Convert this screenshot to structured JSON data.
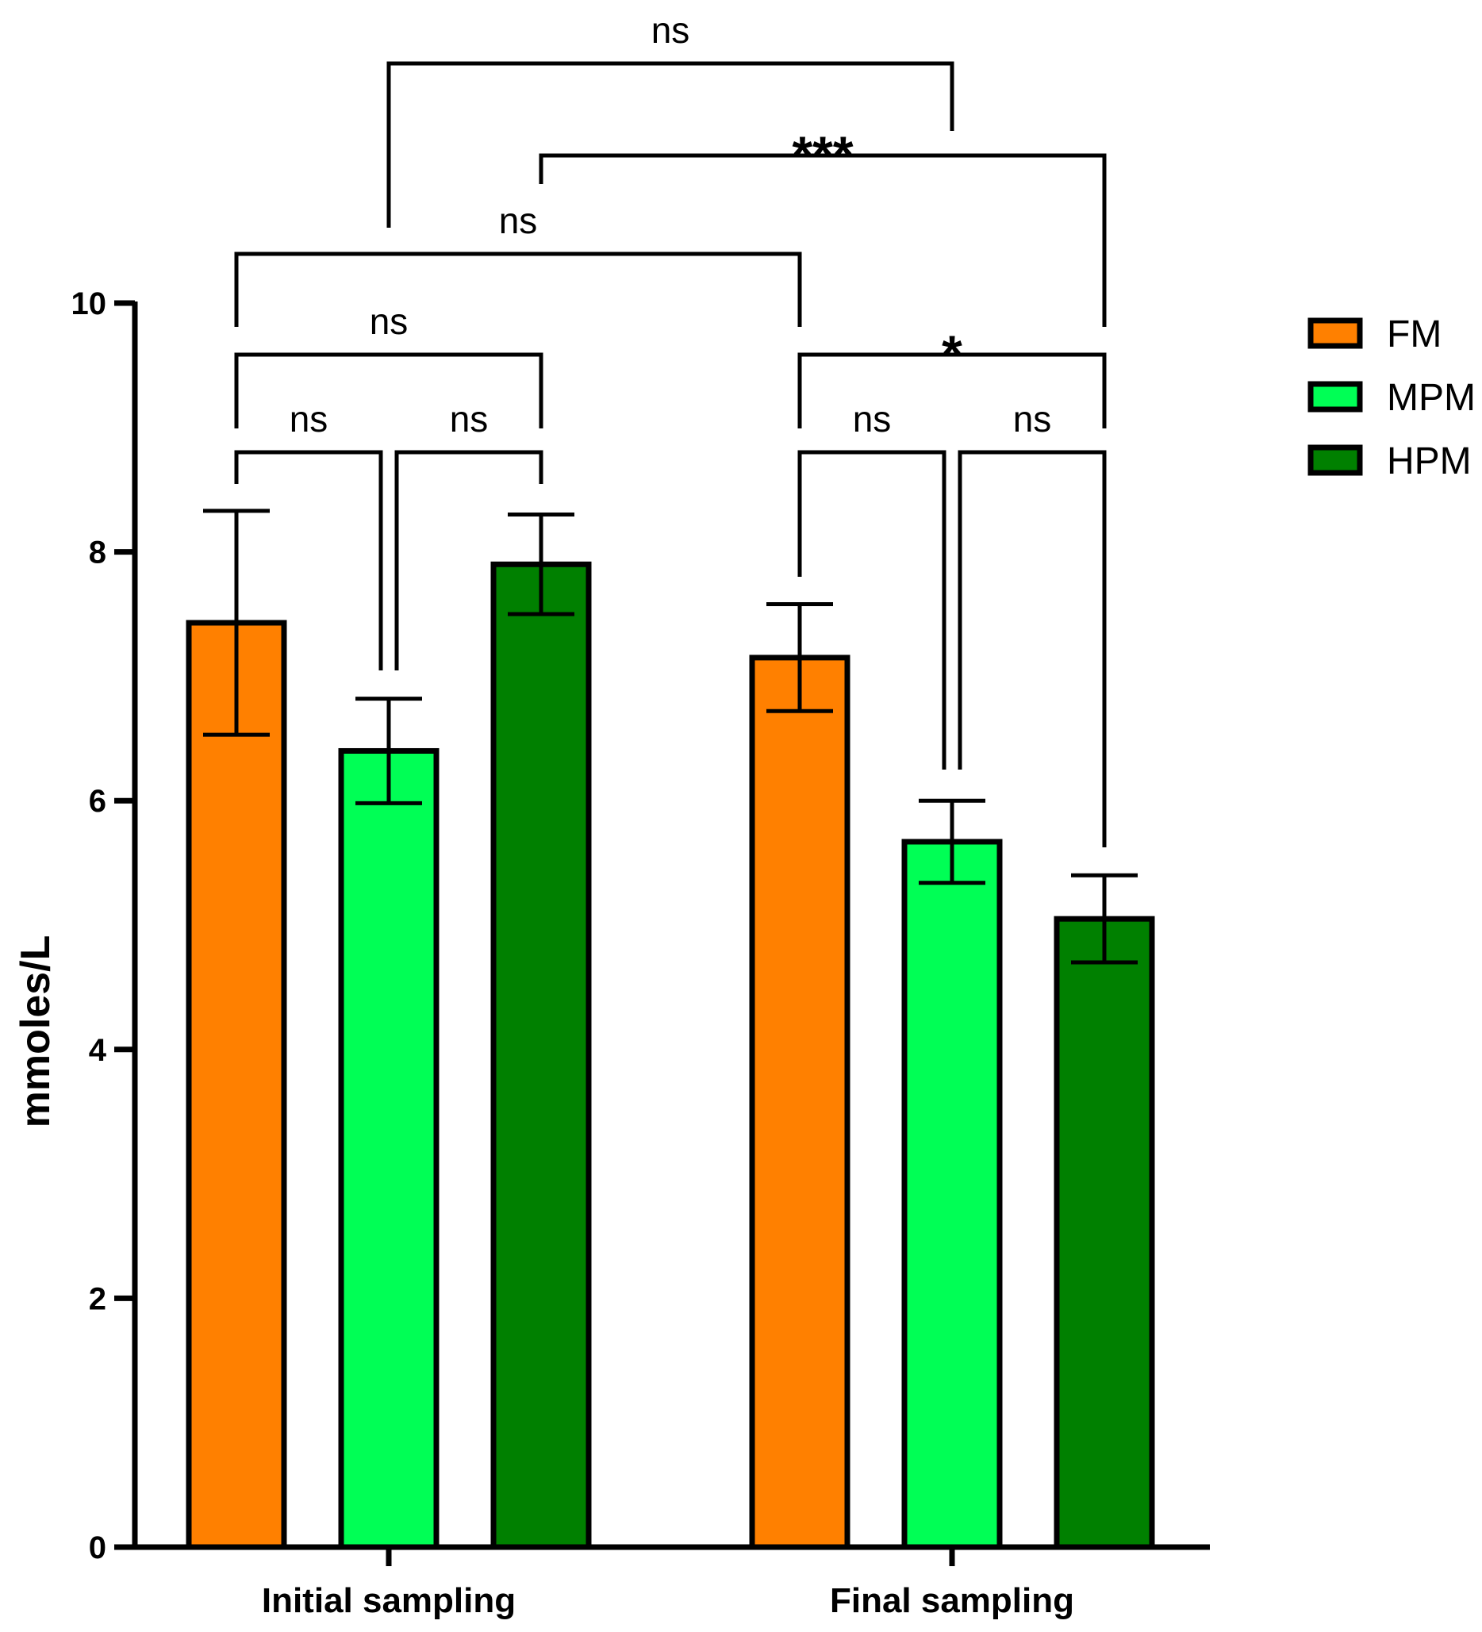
{
  "chart_data": {
    "type": "bar",
    "title": "",
    "xlabel": "",
    "ylabel": "mmoles/L",
    "ylim": [
      0,
      10
    ],
    "yticks": [
      0,
      2,
      4,
      6,
      8,
      10
    ],
    "categories": [
      "Initial sampling",
      "Final sampling"
    ],
    "series": [
      {
        "name": "FM",
        "color": "#ff8000",
        "values": [
          7.43,
          7.15
        ],
        "errors": [
          0.9,
          0.43
        ]
      },
      {
        "name": "MPM",
        "color": "#00ff55",
        "values": [
          6.4,
          5.67
        ],
        "errors": [
          0.42,
          0.33
        ]
      },
      {
        "name": "HPM",
        "color": "#008000",
        "values": [
          7.9,
          5.05
        ],
        "errors": [
          0.4,
          0.35
        ]
      }
    ],
    "legend": {
      "position": "top-right"
    },
    "comparisons": [
      {
        "label": "ns",
        "group1": "Initial sampling FM",
        "group2": "Initial sampling MPM"
      },
      {
        "label": "ns",
        "group1": "Initial sampling MPM",
        "group2": "Initial sampling HPM"
      },
      {
        "label": "ns",
        "group1": "Initial sampling FM",
        "group2": "Initial sampling HPM"
      },
      {
        "label": "ns",
        "group1": "Final sampling FM",
        "group2": "Final sampling MPM"
      },
      {
        "label": "ns",
        "group1": "Final sampling MPM",
        "group2": "Final sampling HPM"
      },
      {
        "label": "*",
        "group1": "Final sampling FM",
        "group2": "Final sampling HPM"
      },
      {
        "label": "ns",
        "group1": "Initial sampling FM",
        "group2": "Final sampling FM"
      },
      {
        "label": "***",
        "group1": "Initial sampling HPM",
        "group2": "Final sampling HPM"
      },
      {
        "label": "ns",
        "group1": "Initial sampling MPM",
        "group2": "Final sampling MPM"
      }
    ]
  }
}
